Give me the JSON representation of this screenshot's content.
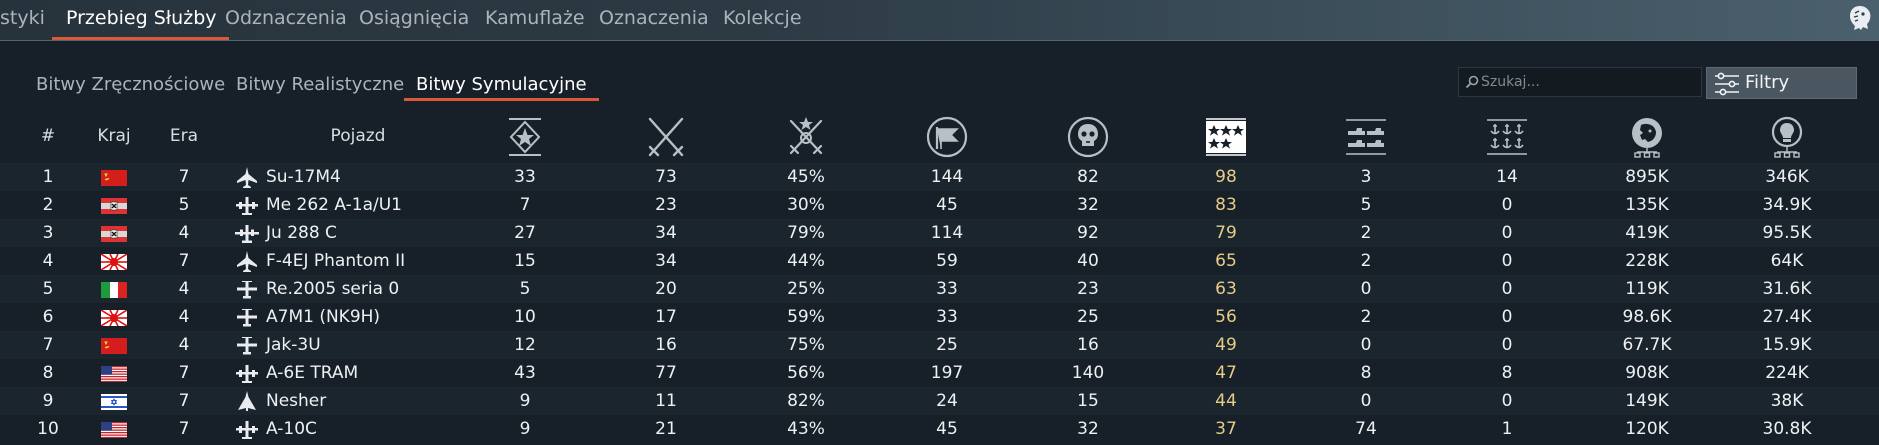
{
  "top_tabs": [
    {
      "label": "styki",
      "active": false
    },
    {
      "label": "Przebieg Służby",
      "active": true
    },
    {
      "label": "Odznaczenia",
      "active": false
    },
    {
      "label": "Osiągnięcia",
      "active": false
    },
    {
      "label": "Kamuflaże",
      "active": false
    },
    {
      "label": "Oznaczenia",
      "active": false
    },
    {
      "label": "Kolekcje",
      "active": false
    }
  ],
  "mode_tabs": [
    {
      "label": "Bitwy Zręcznościowe",
      "active": false
    },
    {
      "label": "Bitwy Realistyczne",
      "active": false
    },
    {
      "label": "Bitwy Symulacyjne",
      "active": true
    }
  ],
  "search": {
    "placeholder": "Szukaj..."
  },
  "filter": {
    "label": "Filtry"
  },
  "columns": {
    "rank": "#",
    "country": "Kraj",
    "era": "Era",
    "vehicle": "Pojazd"
  },
  "stat_icons": [
    "respawns-icon",
    "victories-icon",
    "victories-ratio-icon",
    "missions-icon",
    "deaths-icon",
    "air-kills-icon",
    "ground-kills-icon",
    "naval-kills-icon",
    "silver-lions-icon",
    "research-points-icon"
  ],
  "accent_color": "#d75a3c",
  "highlight_color": "#e6cc87",
  "rows": [
    {
      "rank": "1",
      "country": "ussr",
      "era": "7",
      "vehicle": "Su-17M4",
      "plane": "jet",
      "stats": [
        "33",
        "73",
        "45%",
        "144",
        "82",
        "98",
        "3",
        "14",
        "895K",
        "346K"
      ]
    },
    {
      "rank": "2",
      "country": "germany",
      "era": "5",
      "vehicle": "Me 262 A-1a/U1",
      "plane": "twin",
      "stats": [
        "7",
        "23",
        "30%",
        "45",
        "32",
        "83",
        "5",
        "0",
        "135K",
        "34.9K"
      ]
    },
    {
      "rank": "3",
      "country": "germany",
      "era": "4",
      "vehicle": "Ju 288 C",
      "plane": "bomber",
      "stats": [
        "27",
        "34",
        "79%",
        "114",
        "92",
        "79",
        "2",
        "0",
        "419K",
        "95.5K"
      ]
    },
    {
      "rank": "4",
      "country": "japan",
      "era": "7",
      "vehicle": "F-4EJ Phantom II",
      "plane": "jet",
      "stats": [
        "15",
        "34",
        "44%",
        "59",
        "40",
        "65",
        "2",
        "0",
        "228K",
        "64K"
      ]
    },
    {
      "rank": "5",
      "country": "italy",
      "era": "4",
      "vehicle": "Re.2005 seria 0",
      "plane": "prop",
      "stats": [
        "5",
        "20",
        "25%",
        "33",
        "23",
        "63",
        "0",
        "0",
        "119K",
        "31.6K"
      ]
    },
    {
      "rank": "6",
      "country": "japan",
      "era": "4",
      "vehicle": "A7M1 (NK9H)",
      "plane": "prop",
      "stats": [
        "10",
        "17",
        "59%",
        "33",
        "25",
        "56",
        "2",
        "0",
        "98.6K",
        "27.4K"
      ]
    },
    {
      "rank": "7",
      "country": "ussr",
      "era": "4",
      "vehicle": "Jak-3U",
      "plane": "prop",
      "stats": [
        "12",
        "16",
        "75%",
        "25",
        "16",
        "49",
        "0",
        "0",
        "67.7K",
        "15.9K"
      ]
    },
    {
      "rank": "8",
      "country": "usa",
      "era": "7",
      "vehicle": "A-6E TRAM",
      "plane": "twin",
      "stats": [
        "43",
        "77",
        "56%",
        "197",
        "140",
        "47",
        "8",
        "8",
        "908K",
        "224K"
      ]
    },
    {
      "rank": "9",
      "country": "israel",
      "era": "7",
      "vehicle": "Nesher",
      "plane": "delta",
      "stats": [
        "9",
        "11",
        "82%",
        "24",
        "15",
        "44",
        "0",
        "0",
        "149K",
        "38K"
      ]
    },
    {
      "rank": "10",
      "country": "usa",
      "era": "7",
      "vehicle": "A-10C",
      "plane": "twin",
      "stats": [
        "9",
        "21",
        "43%",
        "45",
        "32",
        "37",
        "74",
        "1",
        "120K",
        "30.8K"
      ]
    }
  ]
}
